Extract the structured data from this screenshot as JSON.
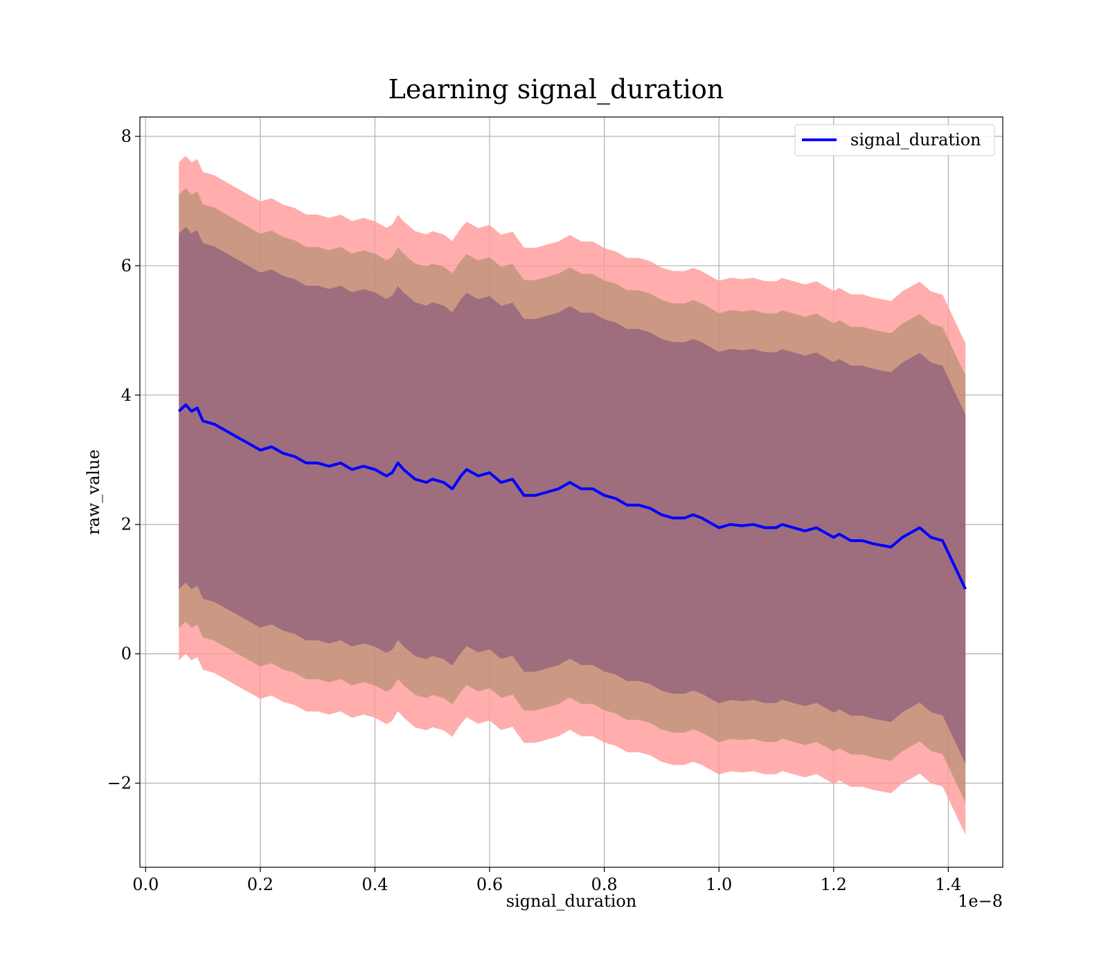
{
  "chart_data": {
    "type": "line",
    "title": "Learning signal_duration",
    "xlabel": "signal_duration",
    "ylabel": "raw_value",
    "x_offset_label": "1e−8",
    "xlim": [
      -0.01,
      1.495
    ],
    "ylim": [
      -3.3,
      8.3
    ],
    "xticks": [
      {
        "value": 0.0,
        "label": "0.0"
      },
      {
        "value": 0.2,
        "label": "0.2"
      },
      {
        "value": 0.4,
        "label": "0.4"
      },
      {
        "value": 0.6,
        "label": "0.6"
      },
      {
        "value": 0.8,
        "label": "0.8"
      },
      {
        "value": 1.0,
        "label": "1.0"
      },
      {
        "value": 1.2,
        "label": "1.2"
      },
      {
        "value": 1.4,
        "label": "1.4"
      }
    ],
    "yticks": [
      {
        "value": -2,
        "label": "−2"
      },
      {
        "value": 0,
        "label": "0"
      },
      {
        "value": 2,
        "label": "2"
      },
      {
        "value": 4,
        "label": "4"
      },
      {
        "value": 6,
        "label": "6"
      },
      {
        "value": 8,
        "label": "8"
      }
    ],
    "grid": true,
    "legend_position": "top-right",
    "series": [
      {
        "name": "signal_duration",
        "color": "#0000ff",
        "x": [
          0.058,
          0.07,
          0.08,
          0.09,
          0.1,
          0.12,
          0.14,
          0.16,
          0.18,
          0.2,
          0.22,
          0.24,
          0.26,
          0.28,
          0.3,
          0.32,
          0.34,
          0.36,
          0.38,
          0.4,
          0.42,
          0.43,
          0.44,
          0.45,
          0.47,
          0.49,
          0.5,
          0.52,
          0.535,
          0.55,
          0.56,
          0.58,
          0.6,
          0.62,
          0.64,
          0.66,
          0.68,
          0.7,
          0.72,
          0.74,
          0.76,
          0.78,
          0.8,
          0.82,
          0.84,
          0.86,
          0.88,
          0.9,
          0.92,
          0.94,
          0.955,
          0.97,
          0.99,
          1.0,
          1.02,
          1.04,
          1.06,
          1.08,
          1.1,
          1.11,
          1.13,
          1.15,
          1.17,
          1.19,
          1.2,
          1.21,
          1.23,
          1.25,
          1.27,
          1.3,
          1.32,
          1.35,
          1.37,
          1.39,
          1.43
        ],
        "y": [
          3.75,
          3.85,
          3.75,
          3.8,
          3.6,
          3.55,
          3.45,
          3.35,
          3.25,
          3.15,
          3.2,
          3.1,
          3.05,
          2.95,
          2.95,
          2.9,
          2.95,
          2.85,
          2.9,
          2.85,
          2.75,
          2.8,
          2.95,
          2.85,
          2.7,
          2.65,
          2.7,
          2.65,
          2.55,
          2.75,
          2.85,
          2.75,
          2.8,
          2.65,
          2.7,
          2.45,
          2.45,
          2.5,
          2.55,
          2.65,
          2.55,
          2.55,
          2.45,
          2.4,
          2.3,
          2.3,
          2.25,
          2.15,
          2.1,
          2.1,
          2.15,
          2.1,
          2.0,
          1.95,
          2.0,
          1.98,
          2.0,
          1.95,
          1.95,
          2.0,
          1.95,
          1.9,
          1.95,
          1.85,
          1.8,
          1.85,
          1.75,
          1.75,
          1.7,
          1.65,
          1.8,
          1.95,
          1.8,
          1.75,
          1.0
        ]
      }
    ],
    "bands": [
      {
        "color": "#ff9999",
        "opacity": 0.8,
        "half_width_start": 3.85,
        "half_width_end": 3.8
      },
      {
        "color": "#a08860",
        "opacity": 0.55,
        "half_width_start": 3.35,
        "half_width_end": 3.3
      },
      {
        "color": "#7a4a7a",
        "opacity": 0.55,
        "half_width_start": 2.75,
        "half_width_end": 2.7
      }
    ]
  }
}
